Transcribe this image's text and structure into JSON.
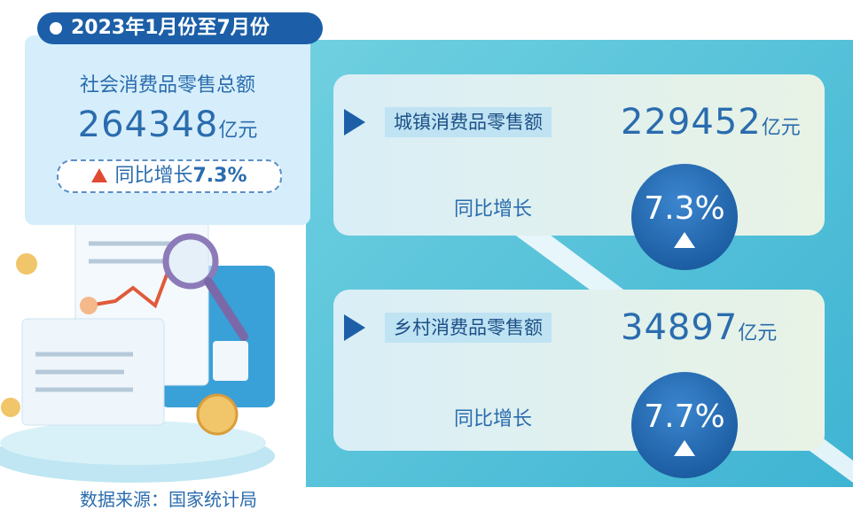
{
  "header": {
    "period": "2023年1月份至7月份"
  },
  "total": {
    "label": "社会消费品零售总额",
    "amount": "264348",
    "unit": "亿元",
    "growth_label": "同比增长",
    "growth": "7.3%"
  },
  "urban": {
    "label": "城镇消费品零售额",
    "amount": "229452",
    "unit": "亿元",
    "growth_label": "同比增长",
    "growth": "7.3%"
  },
  "rural": {
    "label": "乡村消费品零售额",
    "amount": "34897",
    "unit": "亿元",
    "growth_label": "同比增长",
    "growth": "7.7%"
  },
  "source": "数据来源：国家统计局"
}
